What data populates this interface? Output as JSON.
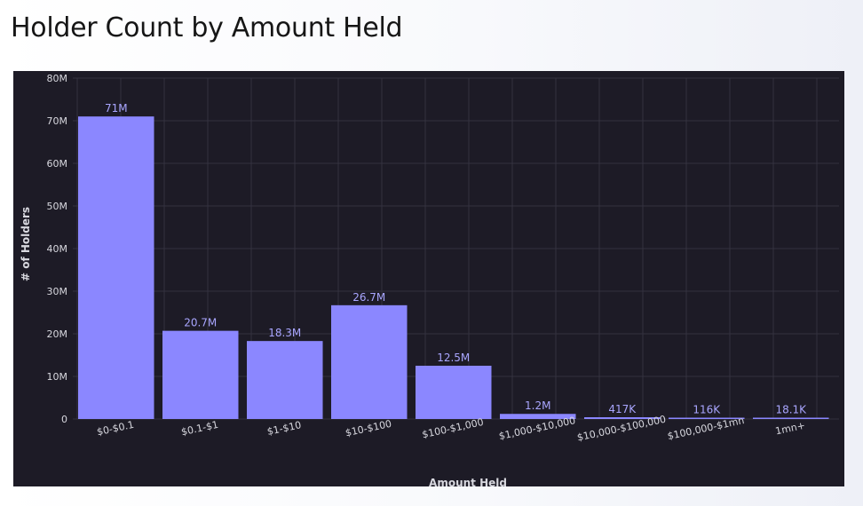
{
  "page": {
    "title": "Holder Count by Amount Held"
  },
  "chart_data": {
    "type": "bar",
    "categories": [
      "$0-$0.1",
      "$0.1-$1",
      "$1-$10",
      "$10-$100",
      "$100-$1,000",
      "$1,000-$10,000",
      "$10,000-$100,000",
      "$100,000-$1mn",
      "1mn+"
    ],
    "values": [
      71000000,
      20700000,
      18300000,
      26700000,
      12500000,
      1200000,
      417000,
      116000,
      18100
    ],
    "data_labels": [
      "71M",
      "20.7M",
      "18.3M",
      "26.7M",
      "12.5M",
      "1.2M",
      "417K",
      "116K",
      "18.1K"
    ],
    "xlabel": "Amount Held",
    "ylabel": "# of Holders",
    "ylim": [
      0,
      80000000
    ],
    "y_ticks": [
      0,
      10000000,
      20000000,
      30000000,
      40000000,
      50000000,
      60000000,
      70000000,
      80000000
    ],
    "y_tick_labels": [
      "0",
      "10M",
      "20M",
      "30M",
      "40M",
      "50M",
      "60M",
      "70M",
      "80M"
    ],
    "grid": true,
    "colors": {
      "bar": "#8b87ff",
      "label": "#a9a6ff",
      "background": "#1d1b26",
      "grid": "#34323f",
      "axis_text": "#d8d8df"
    }
  }
}
